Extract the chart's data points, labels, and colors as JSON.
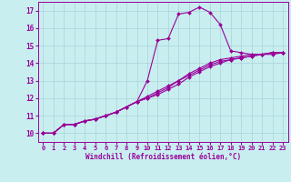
{
  "xlabel": "Windchill (Refroidissement éolien,°C)",
  "background_color": "#c8eef0",
  "line_color": "#990099",
  "grid_color": "#aad4d8",
  "xlim": [
    -0.5,
    23.5
  ],
  "ylim": [
    9.5,
    17.5
  ],
  "xticks": [
    0,
    1,
    2,
    3,
    4,
    5,
    6,
    7,
    8,
    9,
    10,
    11,
    12,
    13,
    14,
    15,
    16,
    17,
    18,
    19,
    20,
    21,
    22,
    23
  ],
  "yticks": [
    10,
    11,
    12,
    13,
    14,
    15,
    16,
    17
  ],
  "curves": [
    {
      "x": [
        0,
        1,
        2,
        3,
        4,
        5,
        6,
        7,
        8,
        9,
        10,
        11,
        12,
        13,
        14,
        15,
        16,
        17,
        18,
        19,
        20,
        21,
        22,
        23
      ],
      "y": [
        10.0,
        10.0,
        10.5,
        10.5,
        10.7,
        10.8,
        11.0,
        11.2,
        11.5,
        11.8,
        13.0,
        15.3,
        15.4,
        16.8,
        16.9,
        17.2,
        16.9,
        16.2,
        14.7,
        14.6,
        14.5,
        14.5,
        14.6,
        14.6
      ]
    },
    {
      "x": [
        0,
        1,
        2,
        3,
        4,
        5,
        6,
        7,
        8,
        9,
        10,
        11,
        12,
        13,
        14,
        15,
        16,
        17,
        18,
        19,
        20,
        21,
        22,
        23
      ],
      "y": [
        10.0,
        10.0,
        10.5,
        10.5,
        10.7,
        10.8,
        11.0,
        11.2,
        11.5,
        11.8,
        12.0,
        12.2,
        12.5,
        12.8,
        13.2,
        13.5,
        13.8,
        14.0,
        14.2,
        14.3,
        14.4,
        14.5,
        14.6,
        14.6
      ]
    },
    {
      "x": [
        0,
        1,
        2,
        3,
        4,
        5,
        6,
        7,
        8,
        9,
        10,
        11,
        12,
        13,
        14,
        15,
        16,
        17,
        18,
        19,
        20,
        21,
        22,
        23
      ],
      "y": [
        10.0,
        10.0,
        10.5,
        10.5,
        10.7,
        10.8,
        11.0,
        11.2,
        11.5,
        11.8,
        12.1,
        12.4,
        12.7,
        13.0,
        13.3,
        13.6,
        13.9,
        14.1,
        14.2,
        14.3,
        14.4,
        14.5,
        14.5,
        14.6
      ]
    },
    {
      "x": [
        0,
        1,
        2,
        3,
        4,
        5,
        6,
        7,
        8,
        9,
        10,
        11,
        12,
        13,
        14,
        15,
        16,
        17,
        18,
        19,
        20,
        21,
        22,
        23
      ],
      "y": [
        10.0,
        10.0,
        10.5,
        10.5,
        10.7,
        10.8,
        11.0,
        11.2,
        11.5,
        11.8,
        12.0,
        12.3,
        12.6,
        13.0,
        13.4,
        13.7,
        14.0,
        14.2,
        14.3,
        14.4,
        14.5,
        14.5,
        14.6,
        14.6
      ]
    }
  ],
  "marker": "D",
  "markersize": 2.0,
  "linewidth": 0.8,
  "tick_fontsize": 5.0,
  "label_fontsize": 5.5
}
